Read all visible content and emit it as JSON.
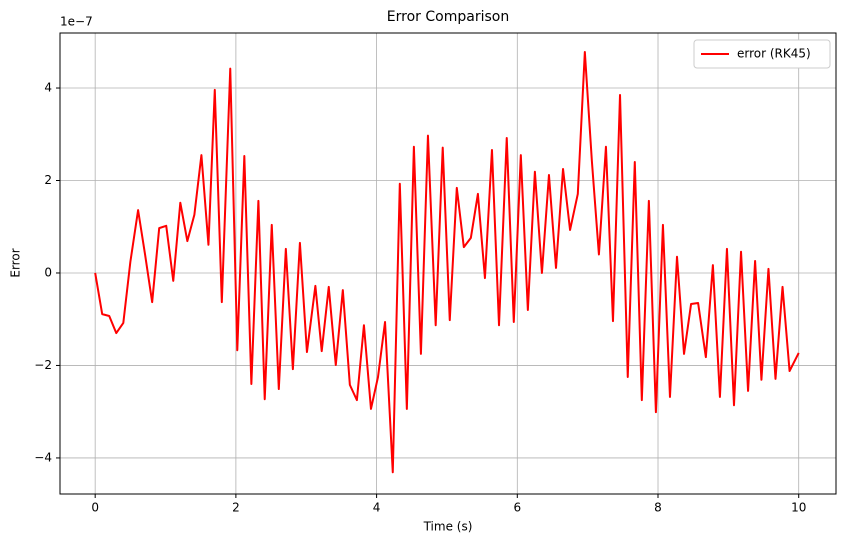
{
  "chart_data": {
    "type": "line",
    "title": "Error Comparison",
    "x_label": "Time (s)",
    "y_label": "Error",
    "y_offset_label": "1e−7",
    "x": [
      0,
      0.1,
      0.2,
      0.3,
      0.4,
      0.5,
      0.61,
      0.71,
      0.81,
      0.91,
      1.01,
      1.11,
      1.21,
      1.31,
      1.41,
      1.51,
      1.61,
      1.7,
      1.8,
      1.92,
      2.02,
      2.12,
      2.22,
      2.32,
      2.41,
      2.51,
      2.61,
      2.71,
      2.81,
      2.91,
      3.01,
      3.13,
      3.22,
      3.32,
      3.42,
      3.52,
      3.62,
      3.72,
      3.82,
      3.92,
      4.02,
      4.12,
      4.23,
      4.33,
      4.43,
      4.53,
      4.63,
      4.73,
      4.84,
      4.94,
      5.04,
      5.14,
      5.24,
      5.34,
      5.44,
      5.54,
      5.64,
      5.74,
      5.85,
      5.95,
      6.05,
      6.15,
      6.25,
      6.35,
      6.45,
      6.55,
      6.65,
      6.75,
      6.86,
      6.96,
      7.06,
      7.16,
      7.26,
      7.36,
      7.46,
      7.57,
      7.67,
      7.77,
      7.87,
      7.97,
      8.07,
      8.17,
      8.27,
      8.37,
      8.47,
      8.57,
      8.68,
      8.78,
      8.88,
      8.98,
      9.08,
      9.18,
      9.28,
      9.38,
      9.47,
      9.57,
      9.67,
      9.77,
      9.87,
      10
    ],
    "series": [
      {
        "name": "error (RK45)",
        "color": "red",
        "values": [
          0,
          -0.89,
          -0.93,
          -1.3,
          -1.08,
          0.24,
          1.36,
          0.39,
          -0.63,
          0.97,
          1.02,
          -0.17,
          1.52,
          0.69,
          1.26,
          2.55,
          0.61,
          3.96,
          -0.63,
          4.42,
          -1.67,
          2.53,
          -2.4,
          1.56,
          -2.73,
          1.04,
          -2.51,
          0.52,
          -2.08,
          0.65,
          -1.71,
          -0.28,
          -1.69,
          -0.3,
          -1.99,
          -0.37,
          -2.42,
          -2.75,
          -1.13,
          -2.94,
          -2.25,
          -1.06,
          -4.31,
          1.93,
          -2.94,
          2.73,
          -1.75,
          2.97,
          -1.13,
          2.71,
          -1.02,
          1.84,
          0.56,
          0.76,
          1.71,
          -0.11,
          2.66,
          -1.13,
          2.92,
          -1.06,
          2.55,
          -0.8,
          2.19,
          0,
          2.12,
          0.11,
          2.25,
          0.93,
          1.71,
          4.78,
          2.42,
          0.4,
          2.73,
          -1.04,
          3.85,
          -2.25,
          2.4,
          -2.75,
          1.56,
          -3.01,
          1.04,
          -2.68,
          0.35,
          -1.75,
          -0.67,
          -0.65,
          -1.82,
          0.17,
          -2.68,
          0.52,
          -2.86,
          0.46,
          -2.55,
          0.26,
          -2.31,
          0.09,
          -2.29,
          -0.3,
          -2.12,
          -1.73
        ]
      }
    ],
    "xlim": [
      -0.5,
      10.53
    ],
    "ylim": [
      -4.78,
      5.19
    ],
    "xticks": [
      0,
      2,
      4,
      6,
      8,
      10
    ],
    "yticks": [
      {
        "value": -4,
        "label": "−4"
      },
      {
        "value": -2,
        "label": "−2"
      },
      0,
      2,
      4
    ],
    "grid": true,
    "legend": "upper right"
  }
}
